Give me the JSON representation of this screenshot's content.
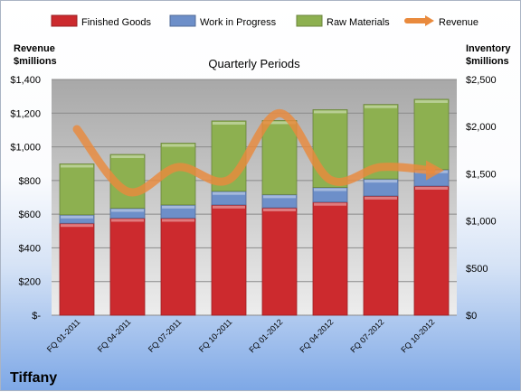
{
  "colors": {
    "finished_goods": "#cc2a2e",
    "work_in_progress": "#6d8fc9",
    "raw_materials": "#8db050",
    "revenue": "#e98a3d"
  },
  "chart_data": {
    "type": "bar",
    "stacked": true,
    "subtitle": "Quarterly Periods",
    "left_axis_title": [
      "Revenue",
      "$millions"
    ],
    "right_axis_title": [
      "Inventory",
      "$millions"
    ],
    "brand": "Tiffany",
    "categories": [
      "FQ 01-2011",
      "FQ 04-2011",
      "FQ 07-2011",
      "FQ 10-2011",
      "FQ 01-2012",
      "FQ 04-2012",
      "FQ 07-2012",
      "FQ 10-2012"
    ],
    "series": [
      {
        "name": "Finished Goods",
        "axis": "right",
        "kind": "bar",
        "values": [
          975,
          1030,
          1030,
          1170,
          1140,
          1200,
          1265,
          1370
        ]
      },
      {
        "name": "Work in Progress",
        "axis": "right",
        "kind": "bar",
        "values": [
          90,
          105,
          140,
          145,
          140,
          155,
          180,
          175
        ]
      },
      {
        "name": "Raw Materials",
        "axis": "right",
        "kind": "bar",
        "values": [
          540,
          570,
          655,
          745,
          785,
          825,
          790,
          745
        ]
      },
      {
        "name": "Revenue",
        "axis": "left",
        "kind": "line",
        "values": [
          1105,
          735,
          880,
          805,
          1200,
          805,
          880,
          860
        ]
      }
    ],
    "left_axis": {
      "min": 0,
      "max": 1400,
      "ticks": [
        "$-",
        "$200",
        "$400",
        "$600",
        "$800",
        "$1,000",
        "$1,200",
        "$1,400"
      ]
    },
    "right_axis": {
      "min": 0,
      "max": 2500,
      "ticks": [
        "$0",
        "$500",
        "$1,000",
        "$1,500",
        "$2,000",
        "$2,500"
      ]
    },
    "grid": true,
    "legend_position": "top"
  }
}
